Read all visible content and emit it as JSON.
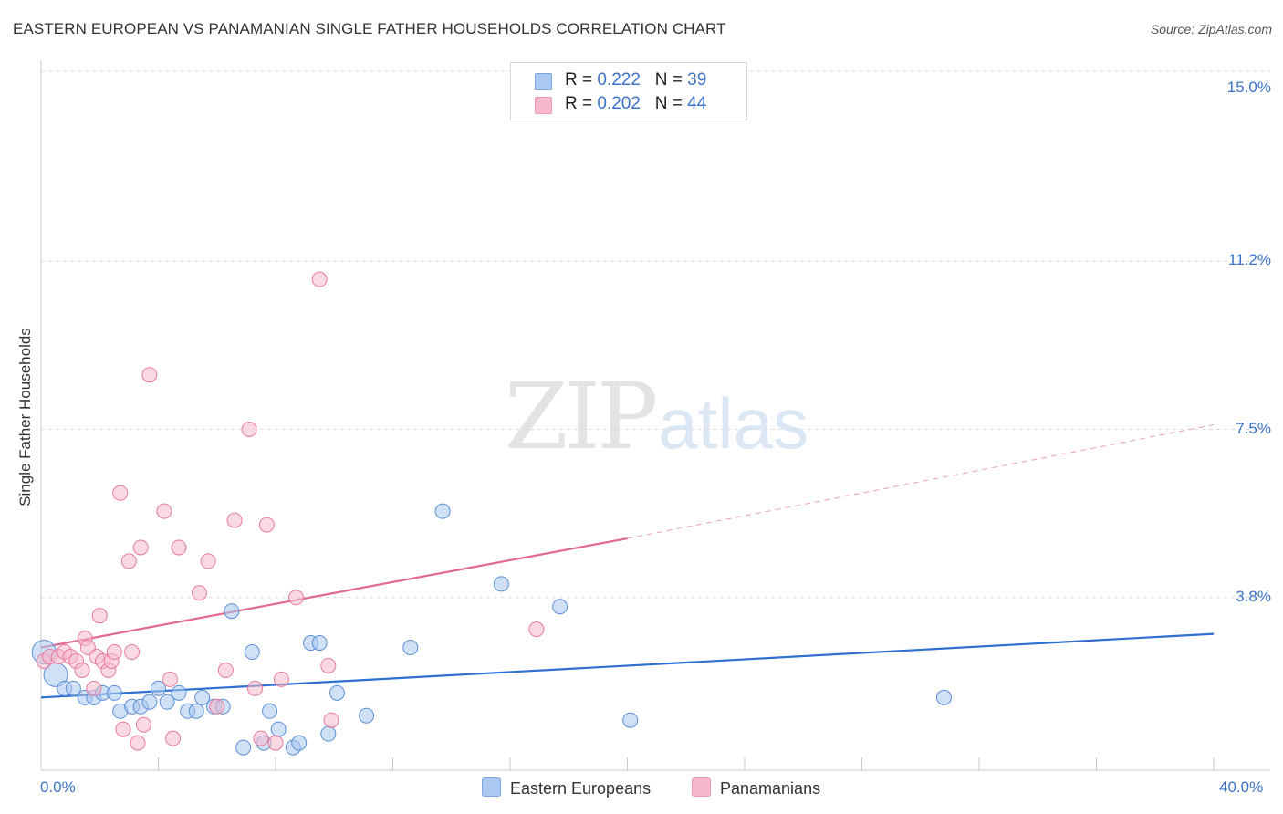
{
  "header": {
    "title": "EASTERN EUROPEAN VS PANAMANIAN SINGLE FATHER HOUSEHOLDS CORRELATION CHART",
    "source": "Source: ZipAtlas.com"
  },
  "watermark": {
    "zip": "ZIP",
    "atlas": "atlas"
  },
  "legend": {
    "rows": [
      {
        "r_label": "R = ",
        "r_value": "0.222",
        "n_label": "N = ",
        "n_value": "39",
        "color": "#aac8f0"
      },
      {
        "r_label": "R = ",
        "r_value": "0.202",
        "n_label": "N = ",
        "n_value": "44",
        "color": "#f6b9cc"
      }
    ]
  },
  "bottom_legend": {
    "items": [
      {
        "label": "Eastern Europeans",
        "color": "#aac8f0"
      },
      {
        "label": "Panamanians",
        "color": "#f6b9cc"
      }
    ]
  },
  "chart_data": {
    "type": "scatter",
    "title": "EASTERN EUROPEAN VS PANAMANIAN SINGLE FATHER HOUSEHOLDS CORRELATION CHART",
    "xlabel": "",
    "ylabel": "Single Father Households",
    "xlim": [
      0,
      40
    ],
    "ylim": [
      0,
      15
    ],
    "x_tick_labels": [
      "0.0%",
      "40.0%"
    ],
    "y_ticks": [
      3.8,
      7.5,
      11.2,
      15.0
    ],
    "y_tick_labels": [
      "3.8%",
      "7.5%",
      "11.2%",
      "15.0%"
    ],
    "grid": true,
    "series": [
      {
        "name": "Eastern Europeans",
        "color": "#5b8fd6",
        "fill": "#aac8f0",
        "points": [
          {
            "x": 0.1,
            "y": 2.6,
            "big": true
          },
          {
            "x": 0.5,
            "y": 2.1,
            "big": true
          },
          {
            "x": 0.8,
            "y": 1.8
          },
          {
            "x": 1.1,
            "y": 1.8
          },
          {
            "x": 1.5,
            "y": 1.6
          },
          {
            "x": 1.8,
            "y": 1.6
          },
          {
            "x": 2.1,
            "y": 1.7
          },
          {
            "x": 2.5,
            "y": 1.7
          },
          {
            "x": 2.7,
            "y": 1.3
          },
          {
            "x": 3.1,
            "y": 1.4
          },
          {
            "x": 3.4,
            "y": 1.4
          },
          {
            "x": 3.7,
            "y": 1.5
          },
          {
            "x": 4.0,
            "y": 1.8
          },
          {
            "x": 4.3,
            "y": 1.5
          },
          {
            "x": 4.7,
            "y": 1.7
          },
          {
            "x": 5.0,
            "y": 1.3
          },
          {
            "x": 5.3,
            "y": 1.3
          },
          {
            "x": 5.5,
            "y": 1.6
          },
          {
            "x": 5.9,
            "y": 1.4
          },
          {
            "x": 6.2,
            "y": 1.4
          },
          {
            "x": 6.5,
            "y": 3.5
          },
          {
            "x": 6.9,
            "y": 0.5
          },
          {
            "x": 7.2,
            "y": 2.6
          },
          {
            "x": 7.6,
            "y": 0.6
          },
          {
            "x": 7.8,
            "y": 1.3
          },
          {
            "x": 8.1,
            "y": 0.9
          },
          {
            "x": 8.6,
            "y": 0.5
          },
          {
            "x": 8.8,
            "y": 0.6
          },
          {
            "x": 9.2,
            "y": 2.8
          },
          {
            "x": 9.5,
            "y": 2.8
          },
          {
            "x": 9.8,
            "y": 0.8
          },
          {
            "x": 10.1,
            "y": 1.7
          },
          {
            "x": 11.1,
            "y": 1.2
          },
          {
            "x": 12.6,
            "y": 2.7
          },
          {
            "x": 13.7,
            "y": 5.7
          },
          {
            "x": 15.7,
            "y": 4.1
          },
          {
            "x": 17.7,
            "y": 3.6
          },
          {
            "x": 20.1,
            "y": 1.1
          },
          {
            "x": 30.8,
            "y": 1.6
          }
        ],
        "trend": {
          "x": [
            0,
            40
          ],
          "y": [
            1.6,
            3.0
          ]
        }
      },
      {
        "name": "Panamanians",
        "color": "#e87aa0",
        "fill": "#f6b9cc",
        "points": [
          {
            "x": 0.1,
            "y": 2.4
          },
          {
            "x": 0.3,
            "y": 2.5
          },
          {
            "x": 0.6,
            "y": 2.5
          },
          {
            "x": 0.8,
            "y": 2.6
          },
          {
            "x": 1.0,
            "y": 2.5
          },
          {
            "x": 1.2,
            "y": 2.4
          },
          {
            "x": 1.4,
            "y": 2.2
          },
          {
            "x": 1.5,
            "y": 2.9
          },
          {
            "x": 1.6,
            "y": 2.7
          },
          {
            "x": 1.8,
            "y": 1.8
          },
          {
            "x": 1.9,
            "y": 2.5
          },
          {
            "x": 2.0,
            "y": 3.4
          },
          {
            "x": 2.1,
            "y": 2.4
          },
          {
            "x": 2.3,
            "y": 2.2
          },
          {
            "x": 2.4,
            "y": 2.4
          },
          {
            "x": 2.5,
            "y": 2.6
          },
          {
            "x": 2.7,
            "y": 6.1
          },
          {
            "x": 2.8,
            "y": 0.9
          },
          {
            "x": 3.0,
            "y": 4.6
          },
          {
            "x": 3.1,
            "y": 2.6
          },
          {
            "x": 3.3,
            "y": 0.6
          },
          {
            "x": 3.4,
            "y": 4.9
          },
          {
            "x": 3.5,
            "y": 1.0
          },
          {
            "x": 3.7,
            "y": 8.7
          },
          {
            "x": 4.2,
            "y": 5.7
          },
          {
            "x": 4.4,
            "y": 2.0
          },
          {
            "x": 4.5,
            "y": 0.7
          },
          {
            "x": 4.7,
            "y": 4.9
          },
          {
            "x": 5.4,
            "y": 3.9
          },
          {
            "x": 5.7,
            "y": 4.6
          },
          {
            "x": 6.0,
            "y": 1.4
          },
          {
            "x": 6.3,
            "y": 2.2
          },
          {
            "x": 6.6,
            "y": 5.5
          },
          {
            "x": 7.1,
            "y": 7.5
          },
          {
            "x": 7.3,
            "y": 1.8
          },
          {
            "x": 7.5,
            "y": 0.7
          },
          {
            "x": 7.7,
            "y": 5.4
          },
          {
            "x": 8.0,
            "y": 0.6
          },
          {
            "x": 8.2,
            "y": 2.0
          },
          {
            "x": 8.7,
            "y": 3.8
          },
          {
            "x": 9.5,
            "y": 10.8
          },
          {
            "x": 9.8,
            "y": 2.3
          },
          {
            "x": 9.9,
            "y": 1.1
          },
          {
            "x": 16.9,
            "y": 3.1
          }
        ],
        "trend": {
          "x": [
            0,
            20
          ],
          "y": [
            2.7,
            5.1
          ]
        },
        "trend_extension": {
          "x": [
            20,
            40
          ],
          "y": [
            5.1,
            7.6
          ]
        }
      }
    ]
  }
}
